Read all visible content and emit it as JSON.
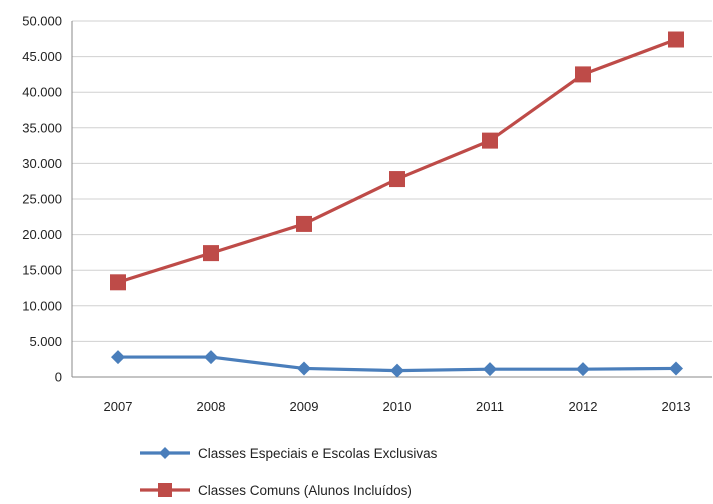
{
  "chart_data": {
    "type": "line",
    "categories": [
      "2007",
      "2008",
      "2009",
      "2010",
      "2011",
      "2012",
      "2013"
    ],
    "y_ticks": [
      "0",
      "5.000",
      "10.000",
      "15.000",
      "20.000",
      "25.000",
      "30.000",
      "35.000",
      "40.000",
      "45.000",
      "50.000"
    ],
    "ylim": [
      0,
      50000
    ],
    "y_tick_step": 5000,
    "grid": true,
    "legend_position": "bottom-left",
    "series": [
      {
        "name": "Classes Especiais e Escolas Exclusivas",
        "color": "#4a7ebb",
        "marker": "diamond",
        "values": [
          2800,
          2800,
          1200,
          900,
          1100,
          1100,
          1200
        ]
      },
      {
        "name": "Classes Comuns (Alunos Incluídos)",
        "color": "#be4b48",
        "marker": "square",
        "values": [
          13300,
          17400,
          21500,
          27800,
          33200,
          42500,
          47400
        ]
      }
    ]
  }
}
